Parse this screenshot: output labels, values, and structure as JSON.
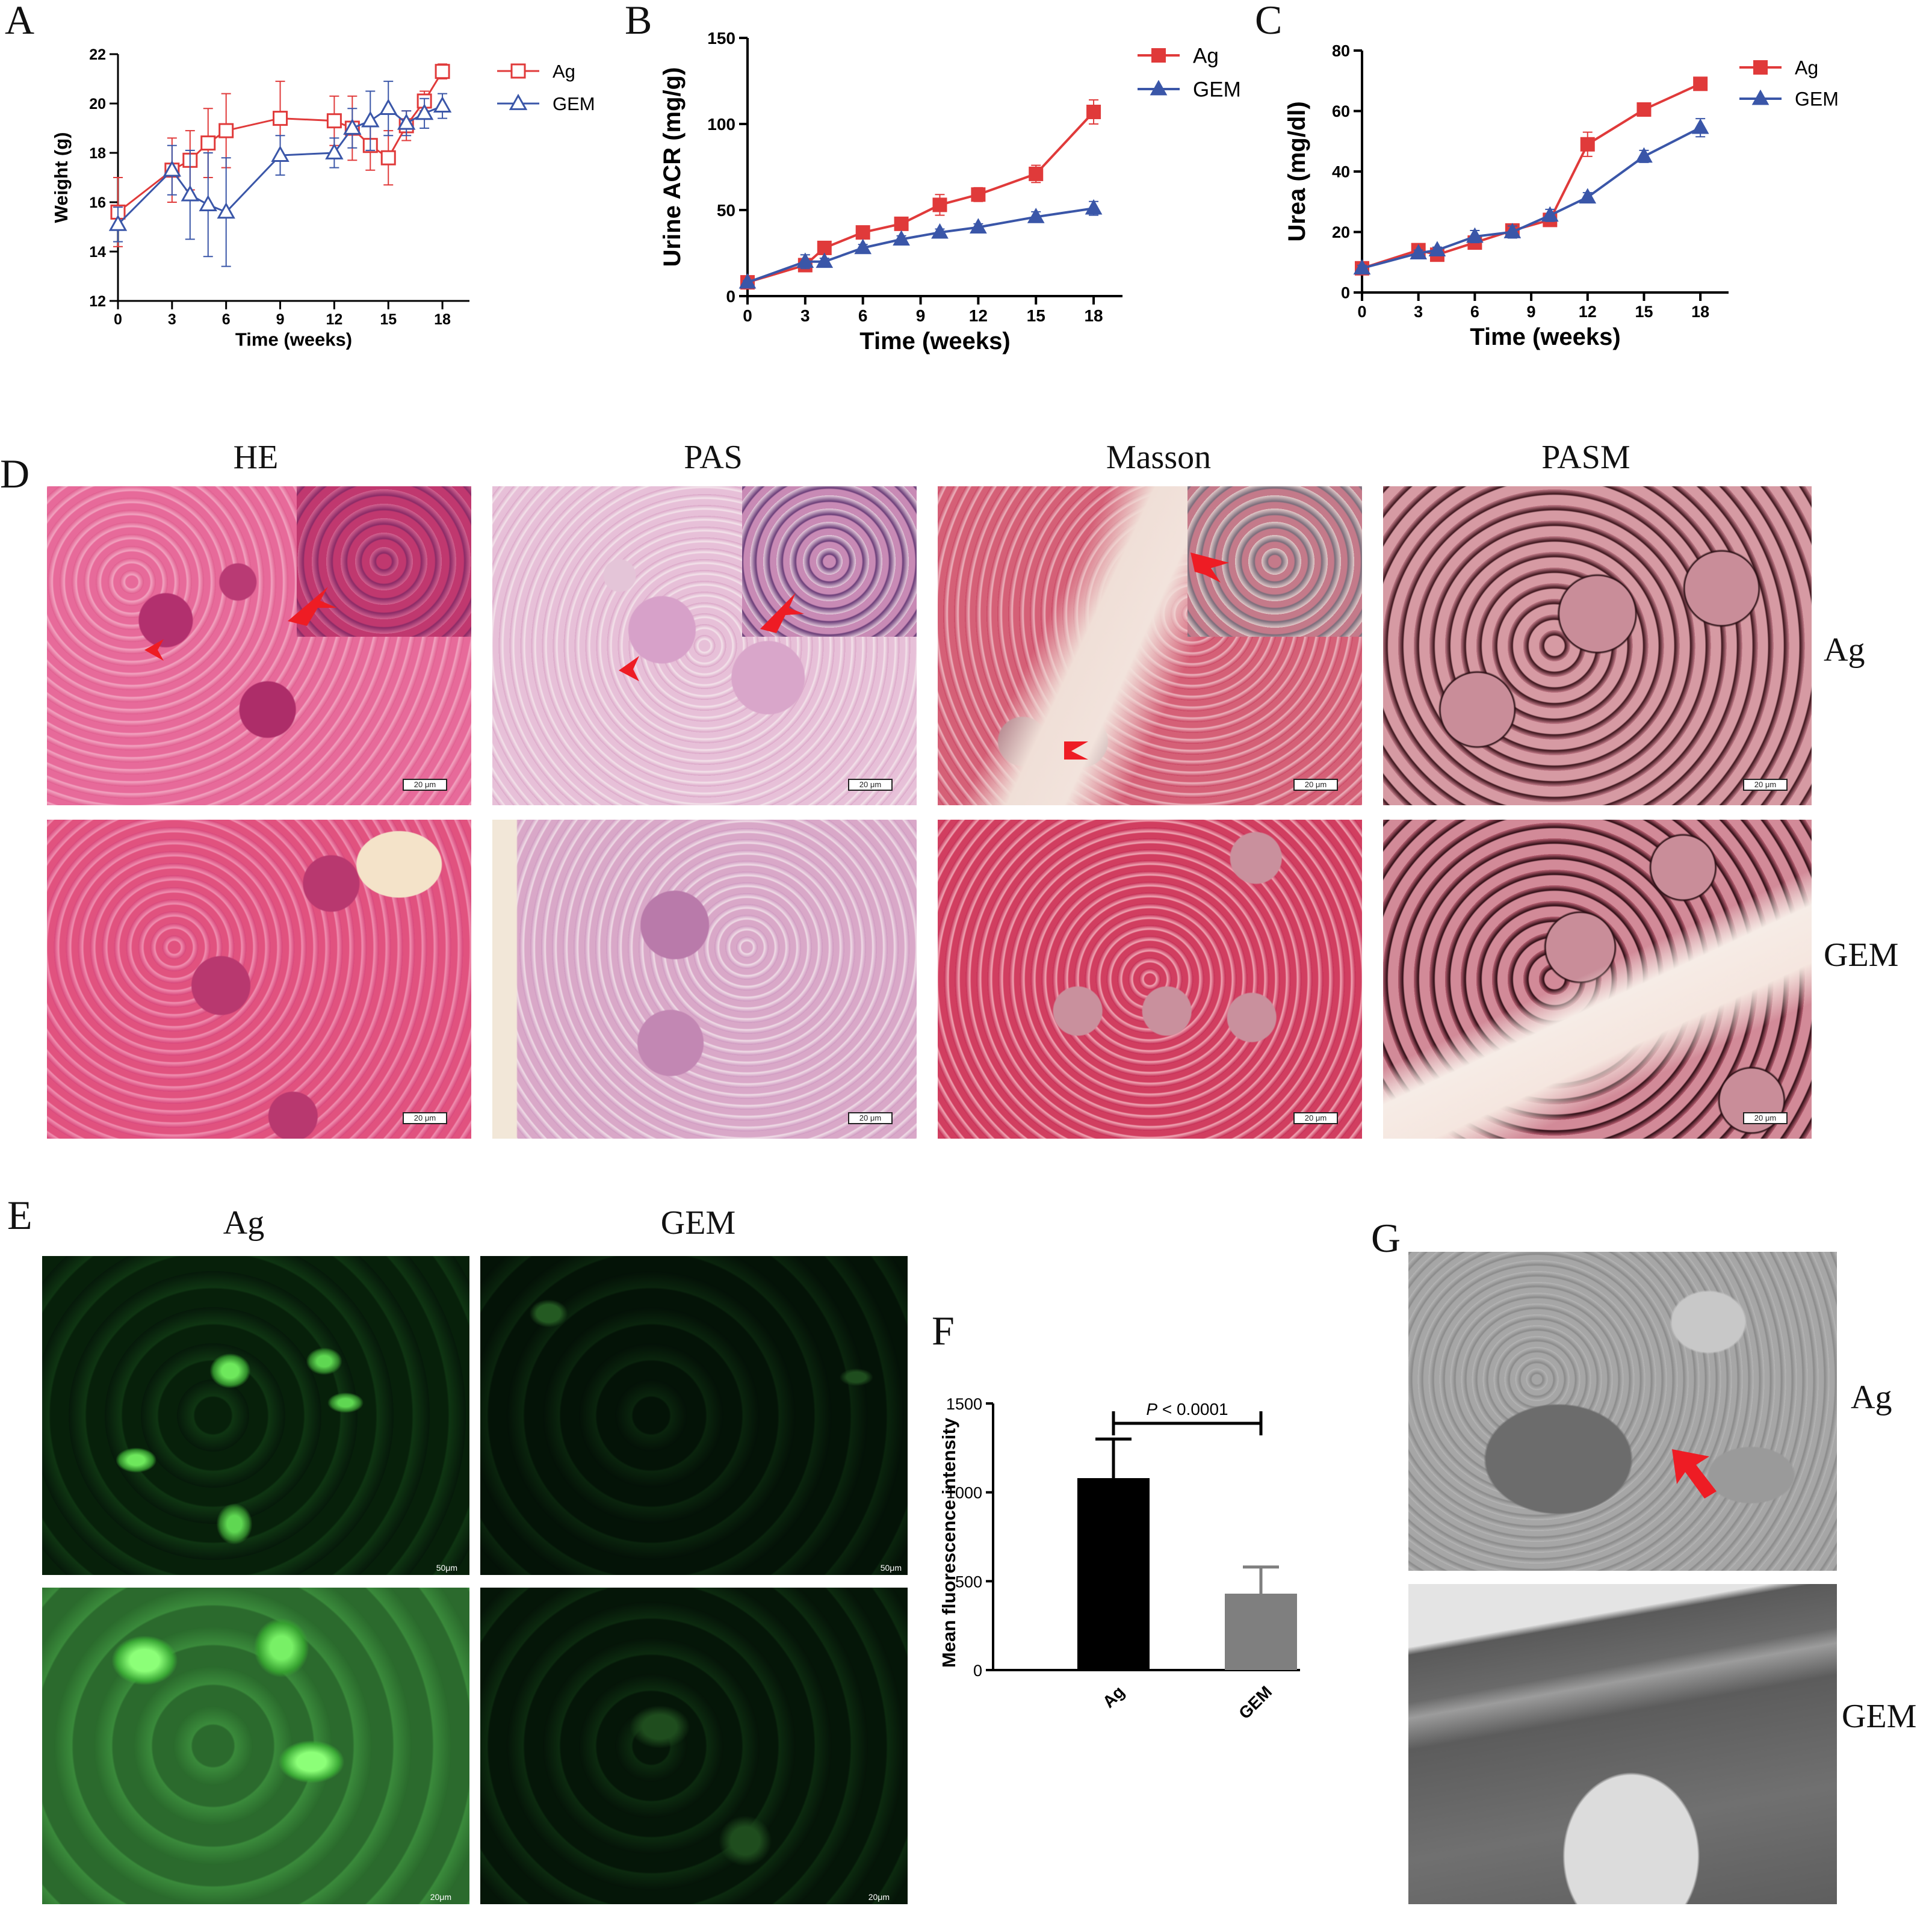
{
  "panels": {
    "A": "A",
    "B": "B",
    "C": "C",
    "D": "D",
    "E": "E",
    "F": "F",
    "G": "G"
  },
  "colors": {
    "ag": "#e03a3a",
    "gem": "#3a56a8"
  },
  "chart_data": [
    {
      "id": "A",
      "type": "line",
      "xlabel": "Time (weeks)",
      "ylabel": "Weight (g)",
      "xlim": [
        0,
        19.5
      ],
      "ylim": [
        12,
        22
      ],
      "xticks": [
        0,
        3,
        6,
        9,
        12,
        15,
        18
      ],
      "yticks": [
        12,
        14,
        16,
        18,
        20,
        22
      ],
      "legend_position": "top-right",
      "marker_fill": "open",
      "series": [
        {
          "name": "Ag",
          "color": "#e03a3a",
          "marker": "square",
          "x": [
            0,
            3,
            4,
            5,
            6,
            9,
            12,
            13,
            14,
            15,
            16,
            17,
            18
          ],
          "y": [
            15.6,
            17.3,
            17.7,
            18.4,
            18.9,
            19.4,
            19.3,
            19.0,
            18.3,
            17.8,
            19.1,
            20.1,
            21.3
          ],
          "err": [
            1.4,
            1.3,
            1.2,
            1.4,
            1.5,
            1.5,
            1.0,
            1.3,
            1.0,
            1.1,
            0.6,
            0.4,
            0.3
          ]
        },
        {
          "name": "GEM",
          "color": "#3a56a8",
          "marker": "triangle",
          "x": [
            0,
            3,
            4,
            5,
            6,
            9,
            12,
            13,
            14,
            15,
            16,
            17,
            18
          ],
          "y": [
            15.1,
            17.3,
            16.3,
            15.9,
            15.6,
            17.9,
            18.0,
            19.0,
            19.3,
            19.8,
            19.2,
            19.6,
            19.9
          ],
          "err": [
            0.7,
            1.0,
            1.8,
            2.1,
            2.2,
            0.8,
            0.6,
            0.8,
            1.2,
            1.1,
            0.5,
            0.6,
            0.5
          ]
        }
      ]
    },
    {
      "id": "B",
      "type": "line",
      "xlabel": "Time (weeks)",
      "ylabel": "Urine ACR (mg/g)",
      "xlim": [
        0,
        19.5
      ],
      "ylim": [
        0,
        150
      ],
      "xticks": [
        0,
        3,
        6,
        9,
        12,
        15,
        18
      ],
      "yticks": [
        0,
        50,
        100,
        150
      ],
      "legend_position": "top-right",
      "marker_fill": "solid",
      "series": [
        {
          "name": "Ag",
          "color": "#e03a3a",
          "marker": "square",
          "x": [
            0,
            3,
            4,
            6,
            8,
            10,
            12,
            15,
            18
          ],
          "y": [
            8,
            18,
            28,
            37,
            42,
            53,
            59,
            71,
            107
          ],
          "err": [
            1,
            2,
            2,
            2,
            2,
            6,
            4,
            5,
            7
          ]
        },
        {
          "name": "GEM",
          "color": "#3a56a8",
          "marker": "triangle",
          "x": [
            0,
            3,
            4,
            6,
            8,
            10,
            12,
            15,
            18
          ],
          "y": [
            8,
            20,
            20,
            28,
            33,
            37,
            40,
            46,
            51
          ],
          "err": [
            1,
            4,
            2,
            2,
            2,
            2,
            2,
            3,
            4
          ]
        }
      ]
    },
    {
      "id": "C",
      "type": "line",
      "xlabel": "Time (weeks)",
      "ylabel": "Urea (mg/dl)",
      "xlim": [
        0,
        19.5
      ],
      "ylim": [
        0,
        80
      ],
      "xticks": [
        0,
        3,
        6,
        9,
        12,
        15,
        18
      ],
      "yticks": [
        0,
        20,
        40,
        60,
        80
      ],
      "legend_position": "top-right",
      "marker_fill": "solid",
      "series": [
        {
          "name": "Ag",
          "color": "#e03a3a",
          "marker": "square",
          "x": [
            0,
            3,
            4,
            6,
            8,
            10,
            12,
            15,
            18
          ],
          "y": [
            8,
            14,
            12.5,
            16.5,
            20.5,
            24,
            49,
            60.5,
            69
          ],
          "err": [
            1,
            1.5,
            1.5,
            2,
            1.5,
            2,
            4,
            1.5,
            1.2
          ]
        },
        {
          "name": "GEM",
          "color": "#3a56a8",
          "marker": "triangle",
          "x": [
            0,
            3,
            4,
            6,
            8,
            10,
            12,
            15,
            18
          ],
          "y": [
            8,
            13,
            14,
            18.5,
            20,
            25.5,
            31.5,
            45,
            54.5
          ],
          "err": [
            1,
            1,
            1,
            2,
            2,
            2,
            1.5,
            2,
            3
          ]
        }
      ]
    },
    {
      "id": "F",
      "type": "bar",
      "xlabel": "",
      "ylabel": "Mean fluorescence intensity",
      "ylim": [
        0,
        1500
      ],
      "yticks": [
        0,
        500,
        1000,
        1500
      ],
      "categories": [
        "Ag",
        "GEM"
      ],
      "values": [
        1080,
        430
      ],
      "err": [
        220,
        150
      ],
      "bar_colors": [
        "#000000",
        "#7f7f7f"
      ],
      "annotation": {
        "italic": "P",
        "text": " < 0.0001"
      }
    }
  ],
  "histology": {
    "stains": [
      "HE",
      "PAS",
      "Masson",
      "PASM"
    ],
    "rows": [
      "Ag",
      "GEM"
    ],
    "scale_label": "20 μm"
  },
  "fluorescence": {
    "cols": [
      "Ag",
      "GEM"
    ],
    "scale_top": "50μm",
    "scale_bottom": "20μm"
  },
  "em": {
    "rows": [
      "Ag",
      "GEM"
    ]
  }
}
